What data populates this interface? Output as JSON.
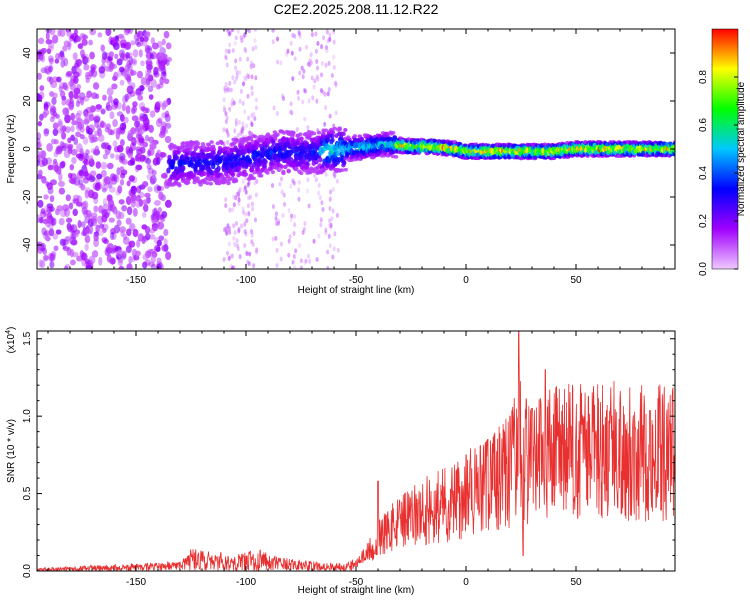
{
  "title": "C2E2.2025.208.11.12.R22",
  "chart_data": [
    {
      "type": "heatmap",
      "xlabel": "Height of straight line (km)",
      "ylabel": "Frequency (Hz)",
      "xlim": [
        -195,
        95
      ],
      "ylim": [
        -50,
        50
      ],
      "x_ticks": [
        -150,
        -100,
        -50,
        0,
        50
      ],
      "y_ticks": [
        -40,
        -20,
        0,
        20,
        40
      ],
      "x_tick_labels": [
        "-150",
        "-100",
        "-50",
        "0",
        "50"
      ],
      "y_tick_labels": [
        "-40",
        "-20",
        "0",
        "20",
        "40"
      ],
      "colorbar": {
        "label": "Normalized spectral amplitude",
        "range": [
          0,
          1
        ],
        "ticks": [
          0,
          0.2,
          0.4,
          0.6,
          0.8
        ],
        "tick_labels": [
          "0.0",
          "0.2",
          "0.4",
          "0.6",
          "0.8"
        ],
        "colormap": [
          "#f0c8ff",
          "#a000ff",
          "#0000ff",
          "#00c8ff",
          "#00ff00",
          "#ffff00",
          "#ff0000"
        ]
      },
      "ridge": {
        "x": [
          -135,
          -125,
          -115,
          -105,
          -95,
          -85,
          -75,
          -65,
          -55,
          -45,
          -35,
          -25,
          -15,
          -5,
          0,
          10,
          20,
          30,
          40,
          50,
          60,
          70,
          80,
          90,
          95
        ],
        "y": [
          -7,
          -6,
          -6,
          -5,
          -3,
          -1,
          -2,
          -1,
          0,
          1,
          2,
          1,
          1,
          0,
          -1,
          -1,
          -1,
          -1,
          -1,
          0,
          0,
          0,
          0,
          0,
          0
        ]
      },
      "noise_region_x": [
        -195,
        -135
      ]
    },
    {
      "type": "line",
      "xlabel": "Height of straight line (km)",
      "ylabel": "SNR (10 * v/v)",
      "y_multiplier": "(x10",
      "y_multiplier_exp": "4",
      "y_multiplier_close": ")",
      "xlim": [
        -195,
        95
      ],
      "ylim": [
        0,
        1.55
      ],
      "x_ticks": [
        -150,
        -100,
        -50,
        0,
        50
      ],
      "y_ticks": [
        0,
        0.5,
        1.0,
        1.5
      ],
      "x_tick_labels": [
        "-150",
        "-100",
        "-50",
        "0",
        "50"
      ],
      "y_tick_labels": [
        "0.0",
        "0.5",
        "1.0",
        "1.5"
      ],
      "series": [
        {
          "color": "#e83030",
          "envelope_x": [
            -195,
            -170,
            -140,
            -130,
            -125,
            -115,
            -105,
            -95,
            -85,
            -75,
            -65,
            -55,
            -50,
            -45,
            -40,
            -35,
            -30,
            -25,
            -20,
            -15,
            -10,
            -5,
            0,
            5,
            10,
            15,
            20,
            24,
            28,
            35,
            45,
            55,
            65,
            75,
            85,
            95
          ],
          "envelope_y": [
            0.01,
            0.02,
            0.03,
            0.04,
            0.08,
            0.07,
            0.06,
            0.08,
            0.05,
            0.04,
            0.03,
            0.03,
            0.05,
            0.12,
            0.22,
            0.28,
            0.33,
            0.36,
            0.4,
            0.44,
            0.46,
            0.48,
            0.52,
            0.55,
            0.58,
            0.63,
            0.7,
            0.85,
            0.75,
            0.8,
            0.82,
            0.82,
            0.83,
            0.82,
            0.8,
            0.82
          ],
          "spikes": [
            [
              24,
              1.55
            ],
            [
              -40,
              0.58
            ],
            [
              0,
              0.75
            ],
            [
              10,
              0.85
            ],
            [
              20,
              1.0
            ],
            [
              36,
              1.3
            ],
            [
              30,
              1.05
            ],
            [
              26,
              0.1
            ]
          ]
        }
      ]
    }
  ]
}
